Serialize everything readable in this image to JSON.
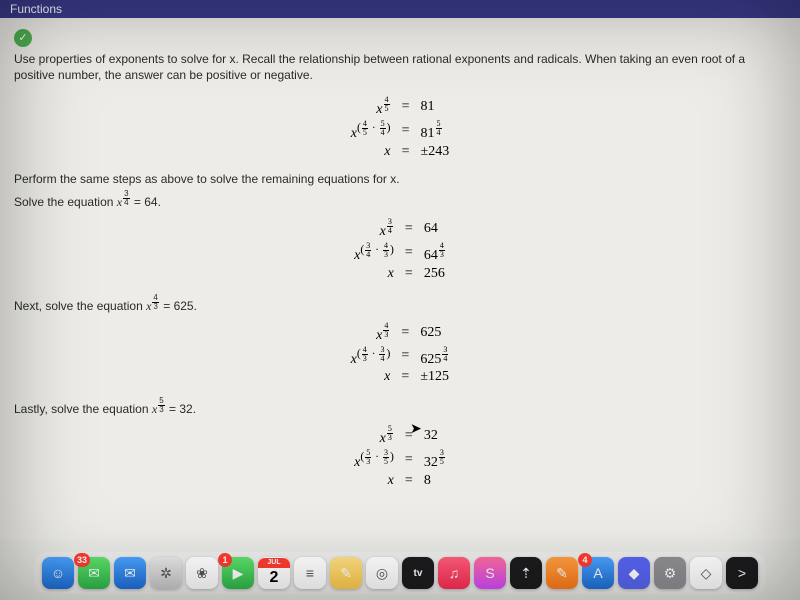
{
  "titlebar": {
    "text": "Functions"
  },
  "colors": {
    "titlebar_bg": "#3a3a8a",
    "content_bg": "#edece7",
    "check_bg": "#4caf50",
    "text": "#2a2a2a"
  },
  "check_icon": "✓",
  "intro": "Use properties of exponents to solve for x. Recall the relationship between rational exponents and radicals. When taking an even root of a positive number, the answer can be positive or negative.",
  "blocks": [
    {
      "rows": [
        {
          "lhs_base": "x",
          "lhs_exp_n": "4",
          "lhs_exp_d": "5",
          "rhs": "81"
        },
        {
          "lhs_pair_a_n": "4",
          "lhs_pair_a_d": "5",
          "lhs_pair_b_n": "5",
          "lhs_pair_b_d": "4",
          "rhs_base": "81",
          "rhs_exp_n": "5",
          "rhs_exp_d": "4"
        },
        {
          "lhs_plain": "x",
          "rhs": "±243"
        }
      ]
    }
  ],
  "step1a": "Perform the same steps as above to solve the remaining equations for x.",
  "step1b_pre": "Solve the equation ",
  "step1b_exp_n": "3",
  "step1b_exp_d": "4",
  "step1b_val": "64",
  "block2": {
    "rows": [
      {
        "lhs_base": "x",
        "lhs_exp_n": "3",
        "lhs_exp_d": "4",
        "rhs": "64"
      },
      {
        "lhs_pair_a_n": "3",
        "lhs_pair_a_d": "4",
        "lhs_pair_b_n": "4",
        "lhs_pair_b_d": "3",
        "rhs_base": "64",
        "rhs_exp_n": "4",
        "rhs_exp_d": "3"
      },
      {
        "lhs_plain": "x",
        "rhs": "256"
      }
    ]
  },
  "step2_pre": "Next, solve the equation ",
  "step2_exp_n": "4",
  "step2_exp_d": "3",
  "step2_val": "625",
  "block3": {
    "rows": [
      {
        "lhs_base": "x",
        "lhs_exp_n": "4",
        "lhs_exp_d": "3",
        "rhs": "625"
      },
      {
        "lhs_pair_a_n": "4",
        "lhs_pair_a_d": "3",
        "lhs_pair_b_n": "3",
        "lhs_pair_b_d": "4",
        "rhs_base": "625",
        "rhs_exp_n": "3",
        "rhs_exp_d": "4"
      },
      {
        "lhs_plain": "x",
        "rhs": "±125"
      }
    ]
  },
  "step3_pre": "Lastly, solve the equation ",
  "step3_exp_n": "5",
  "step3_exp_d": "3",
  "step3_val": "32",
  "block4": {
    "rows": [
      {
        "lhs_base": "x",
        "lhs_exp_n": "5",
        "lhs_exp_d": "3",
        "rhs": "32"
      },
      {
        "lhs_pair_a_n": "5",
        "lhs_pair_a_d": "3",
        "lhs_pair_b_n": "3",
        "lhs_pair_b_d": "5",
        "rhs_base": "32",
        "rhs_exp_n": "3",
        "rhs_exp_d": "5"
      },
      {
        "lhs_plain": "x",
        "rhs": "8"
      }
    ]
  },
  "dock": {
    "items": [
      {
        "name": "finder-icon",
        "bg": "linear-gradient(#4aa3ff,#1e6fd9)",
        "glyph": "☺",
        "badge": ""
      },
      {
        "name": "messages-icon",
        "bg": "linear-gradient(#5ee36b,#2fb84a)",
        "glyph": "✉",
        "badge": "33"
      },
      {
        "name": "mail-icon",
        "bg": "linear-gradient(#4aa3ff,#1e6fd9)",
        "glyph": "✉",
        "badge": ""
      },
      {
        "name": "safari-icon",
        "bg": "linear-gradient(#e8e8e8,#c8c8c8)",
        "glyph": "✲",
        "badge": ""
      },
      {
        "name": "photos-icon",
        "bg": "#ffffff",
        "glyph": "❀",
        "badge": ""
      },
      {
        "name": "facetime-icon",
        "bg": "linear-gradient(#5ee36b,#2fb84a)",
        "glyph": "▶",
        "badge": "1"
      },
      {
        "name": "calendar-icon",
        "bg": "#ffffff",
        "glyph": "",
        "badge": "",
        "cal_month": "JUL",
        "cal_day": "2"
      },
      {
        "name": "reminders-icon",
        "bg": "#ffffff",
        "glyph": "≡",
        "badge": ""
      },
      {
        "name": "notes-icon",
        "bg": "linear-gradient(#ffe082,#ffcc4d)",
        "glyph": "✎",
        "badge": ""
      },
      {
        "name": "chrome-icon",
        "bg": "#ffffff",
        "glyph": "◎",
        "badge": ""
      },
      {
        "name": "tv-icon",
        "bg": "#1c1c1e",
        "glyph": "tv",
        "badge": ""
      },
      {
        "name": "music-icon",
        "bg": "linear-gradient(#ff5e7a,#ff2d55)",
        "glyph": "♫",
        "badge": ""
      },
      {
        "name": "shortcuts-icon",
        "bg": "linear-gradient(#ff6b9d,#d64bff)",
        "glyph": "S",
        "badge": ""
      },
      {
        "name": "stocks-icon",
        "bg": "#1c1c1e",
        "glyph": "⇡",
        "badge": ""
      },
      {
        "name": "preview-icon",
        "bg": "linear-gradient(#ff9f40,#ff7a1a)",
        "glyph": "✎",
        "badge": ""
      },
      {
        "name": "appstore-icon",
        "bg": "linear-gradient(#4aa3ff,#1e6fd9)",
        "glyph": "A",
        "badge": "4"
      },
      {
        "name": "discord-icon",
        "bg": "#5865f2",
        "glyph": "◆",
        "badge": ""
      },
      {
        "name": "settings-icon",
        "bg": "#8e8e93",
        "glyph": "⚙",
        "badge": ""
      },
      {
        "name": "roblox-icon",
        "bg": "#ffffff",
        "glyph": "◇",
        "badge": ""
      },
      {
        "name": "terminal-icon",
        "bg": "#1c1c1e",
        "glyph": ">",
        "badge": ""
      }
    ]
  }
}
